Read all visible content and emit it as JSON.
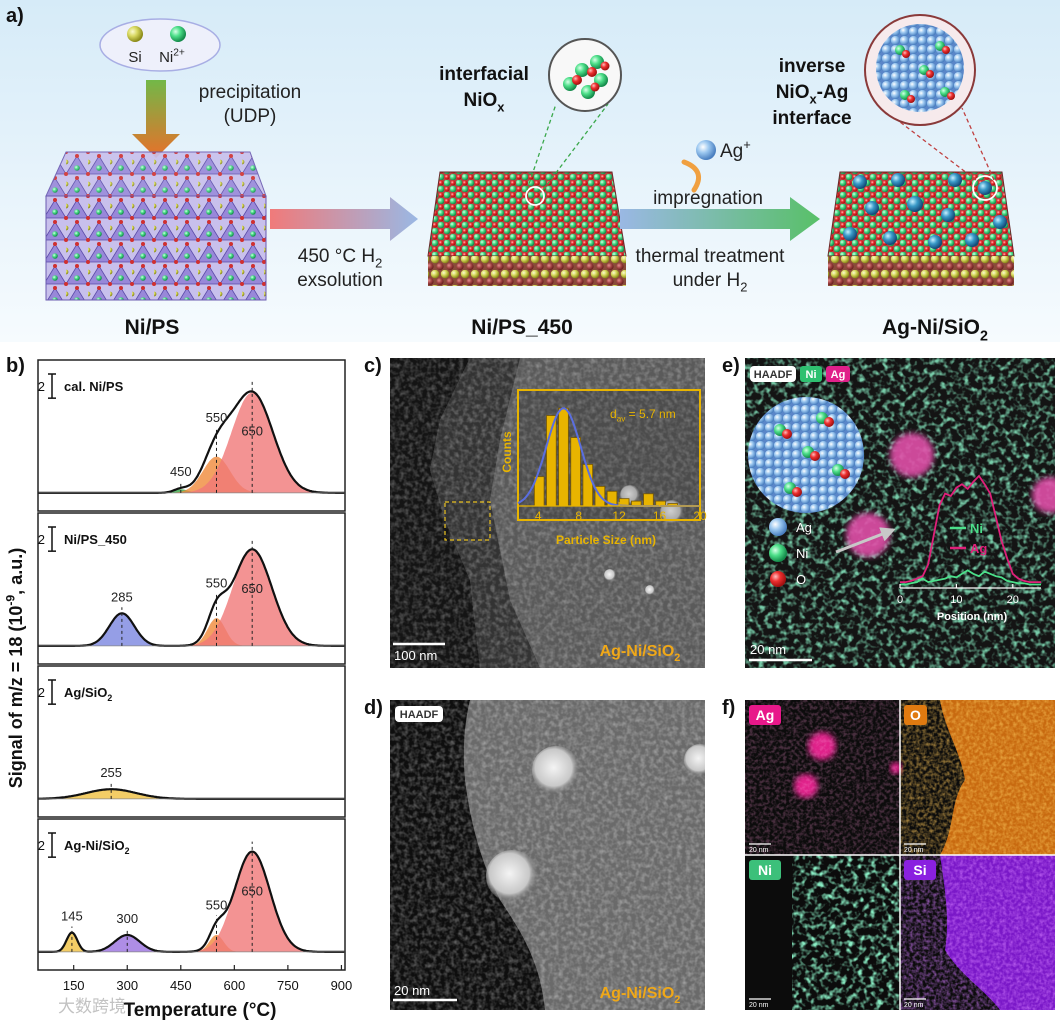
{
  "panel_a": {
    "label": "a)",
    "precursors": [
      "Si",
      [
        "Ni",
        {
          "sup": "2+"
        }
      ]
    ],
    "step1": [
      "precipitation",
      "(UDP)"
    ],
    "step2": [
      [
        "450 °C H",
        {
          "sub": "2"
        }
      ],
      "exsolution"
    ],
    "interface1": [
      "interfacial",
      [
        "NiO",
        {
          "sub": "x"
        }
      ]
    ],
    "ion": [
      "Ag",
      {
        "sup": "+"
      }
    ],
    "step3": "impregnation",
    "step4": [
      "thermal treatment",
      [
        "under H",
        {
          "sub": "2"
        }
      ]
    ],
    "interface2": [
      "inverse",
      [
        "NiO",
        {
          "sub": "x"
        },
        "-Ag"
      ],
      "interface"
    ],
    "materials": [
      "Ni/PS",
      "Ni/PS_450",
      [
        "Ag-Ni/SiO",
        {
          "sub": "2"
        }
      ]
    ]
  },
  "panel_b": {
    "label": "b)",
    "y_label": [
      "Signal of m/z = 18 (10",
      {
        "sup": "-9"
      },
      ", a.u.)"
    ],
    "x_label": "Temperature (°C)",
    "xlim": [
      50,
      910
    ],
    "xticks": [
      150,
      300,
      450,
      600,
      750,
      900
    ],
    "ylim": [
      -1.5,
      11
    ],
    "scale_bar": 2,
    "subpanels": [
      {
        "name": "cal. Ni/PS",
        "peaks": [
          {
            "center": 450,
            "height": 0.3,
            "width": 20,
            "color": "#3aa84a"
          },
          {
            "center": 550,
            "height": 3,
            "width": 38,
            "color": "#f08a3a"
          },
          {
            "center": 650,
            "height": 8.3,
            "width": 58,
            "color": "#f07878"
          }
        ]
      },
      {
        "name": "Ni/PS_450",
        "peaks": [
          {
            "center": 285,
            "height": 2.7,
            "width": 35,
            "color": "#7a86e0"
          },
          {
            "center": 550,
            "height": 2.3,
            "width": 25,
            "color": "#f08a3a"
          },
          {
            "center": 650,
            "height": 8,
            "width": 55,
            "color": "#f07878"
          }
        ]
      },
      {
        "name": [
          "Ag/SiO",
          {
            "sub": "2"
          }
        ],
        "peaks": [
          {
            "center": 255,
            "height": 0.8,
            "width": 70,
            "color": "#f0c040"
          }
        ]
      },
      {
        "name": [
          "Ag-Ni/SiO",
          {
            "sub": "2"
          }
        ],
        "peaks": [
          {
            "center": 145,
            "height": 1.6,
            "width": 15,
            "color": "#f0c040"
          },
          {
            "center": 300,
            "height": 1.4,
            "width": 35,
            "color": "#9a70e0"
          },
          {
            "center": 550,
            "height": 1.4,
            "width": 20,
            "color": "#f08a3a"
          },
          {
            "center": 650,
            "height": 8.3,
            "width": 50,
            "color": "#f07878"
          }
        ]
      }
    ]
  },
  "panel_c": {
    "label": "c)",
    "scale_bar": "100 nm",
    "sample": [
      "Ag-Ni/SiO",
      {
        "sub": "2"
      }
    ],
    "histogram": {
      "type": "histogram",
      "x_label": "Particle Size (nm)",
      "y_label": "Counts",
      "average": [
        "d",
        {
          "sub": "av"
        },
        " = 5.7 nm"
      ],
      "bins": [
        3.5,
        4.7,
        5.9,
        7.1,
        8.3,
        9.5,
        10.7,
        11.9,
        13.1,
        14.3,
        15.5,
        16.7,
        17.9
      ],
      "counts": [
        12,
        37,
        40,
        28,
        17,
        8,
        6,
        3,
        2,
        5,
        2,
        1
      ],
      "color": "#e8b400",
      "fit": {
        "center": 6.5,
        "width": 1.7,
        "height": 40,
        "color": "#5a6ee0"
      },
      "xlim": [
        2,
        20
      ],
      "xticks": [
        4,
        8,
        12,
        16,
        20
      ],
      "ylim": [
        0,
        45
      ]
    }
  },
  "panel_d": {
    "label": "d)",
    "badge": "HAADF",
    "scale_bar": "20 nm",
    "sample": [
      "Ag-Ni/SiO",
      {
        "sub": "2"
      }
    ]
  },
  "panel_e": {
    "label": "e)",
    "badges": [
      "HAADF",
      "Ni",
      "Ag"
    ],
    "legend": [
      "Ag",
      "Ni",
      "O"
    ],
    "scale_bar": "20 nm",
    "profile": {
      "type": "line",
      "x_label": "Position (nm)",
      "x": [
        0,
        1,
        2,
        3,
        4,
        5,
        6,
        7,
        8,
        9,
        10,
        11,
        12,
        13,
        14,
        15,
        16,
        17,
        18,
        19,
        20,
        21,
        22,
        23,
        24,
        25
      ],
      "xlim": [
        0,
        25
      ],
      "xticks": [
        0,
        10,
        20
      ],
      "ylim": [
        0,
        100
      ],
      "series": [
        {
          "name": "Ni",
          "color": "#4be08a",
          "values": [
            3,
            3,
            4,
            5,
            8,
            5,
            6,
            7,
            8,
            10,
            9,
            12,
            15,
            12,
            10,
            14,
            12,
            10,
            9,
            6,
            5,
            4,
            4,
            3,
            3,
            3
          ]
        },
        {
          "name": "Ag",
          "color": "#e0207a",
          "values": [
            5,
            5,
            6,
            8,
            10,
            20,
            45,
            70,
            80,
            78,
            85,
            88,
            84,
            90,
            95,
            88,
            80,
            60,
            40,
            25,
            12,
            8,
            6,
            5,
            5,
            5
          ]
        }
      ]
    }
  },
  "panel_f": {
    "label": "f)",
    "scale_bar": "20 nm",
    "tiles": [
      {
        "element": "Ag",
        "color": "#e8188a"
      },
      {
        "element": "O",
        "color": "#e07a10"
      },
      {
        "element": "Ni",
        "color": "#3cc07a"
      },
      {
        "element": "Si",
        "color": "#8a20e0"
      }
    ]
  },
  "watermark": "大数跨境"
}
